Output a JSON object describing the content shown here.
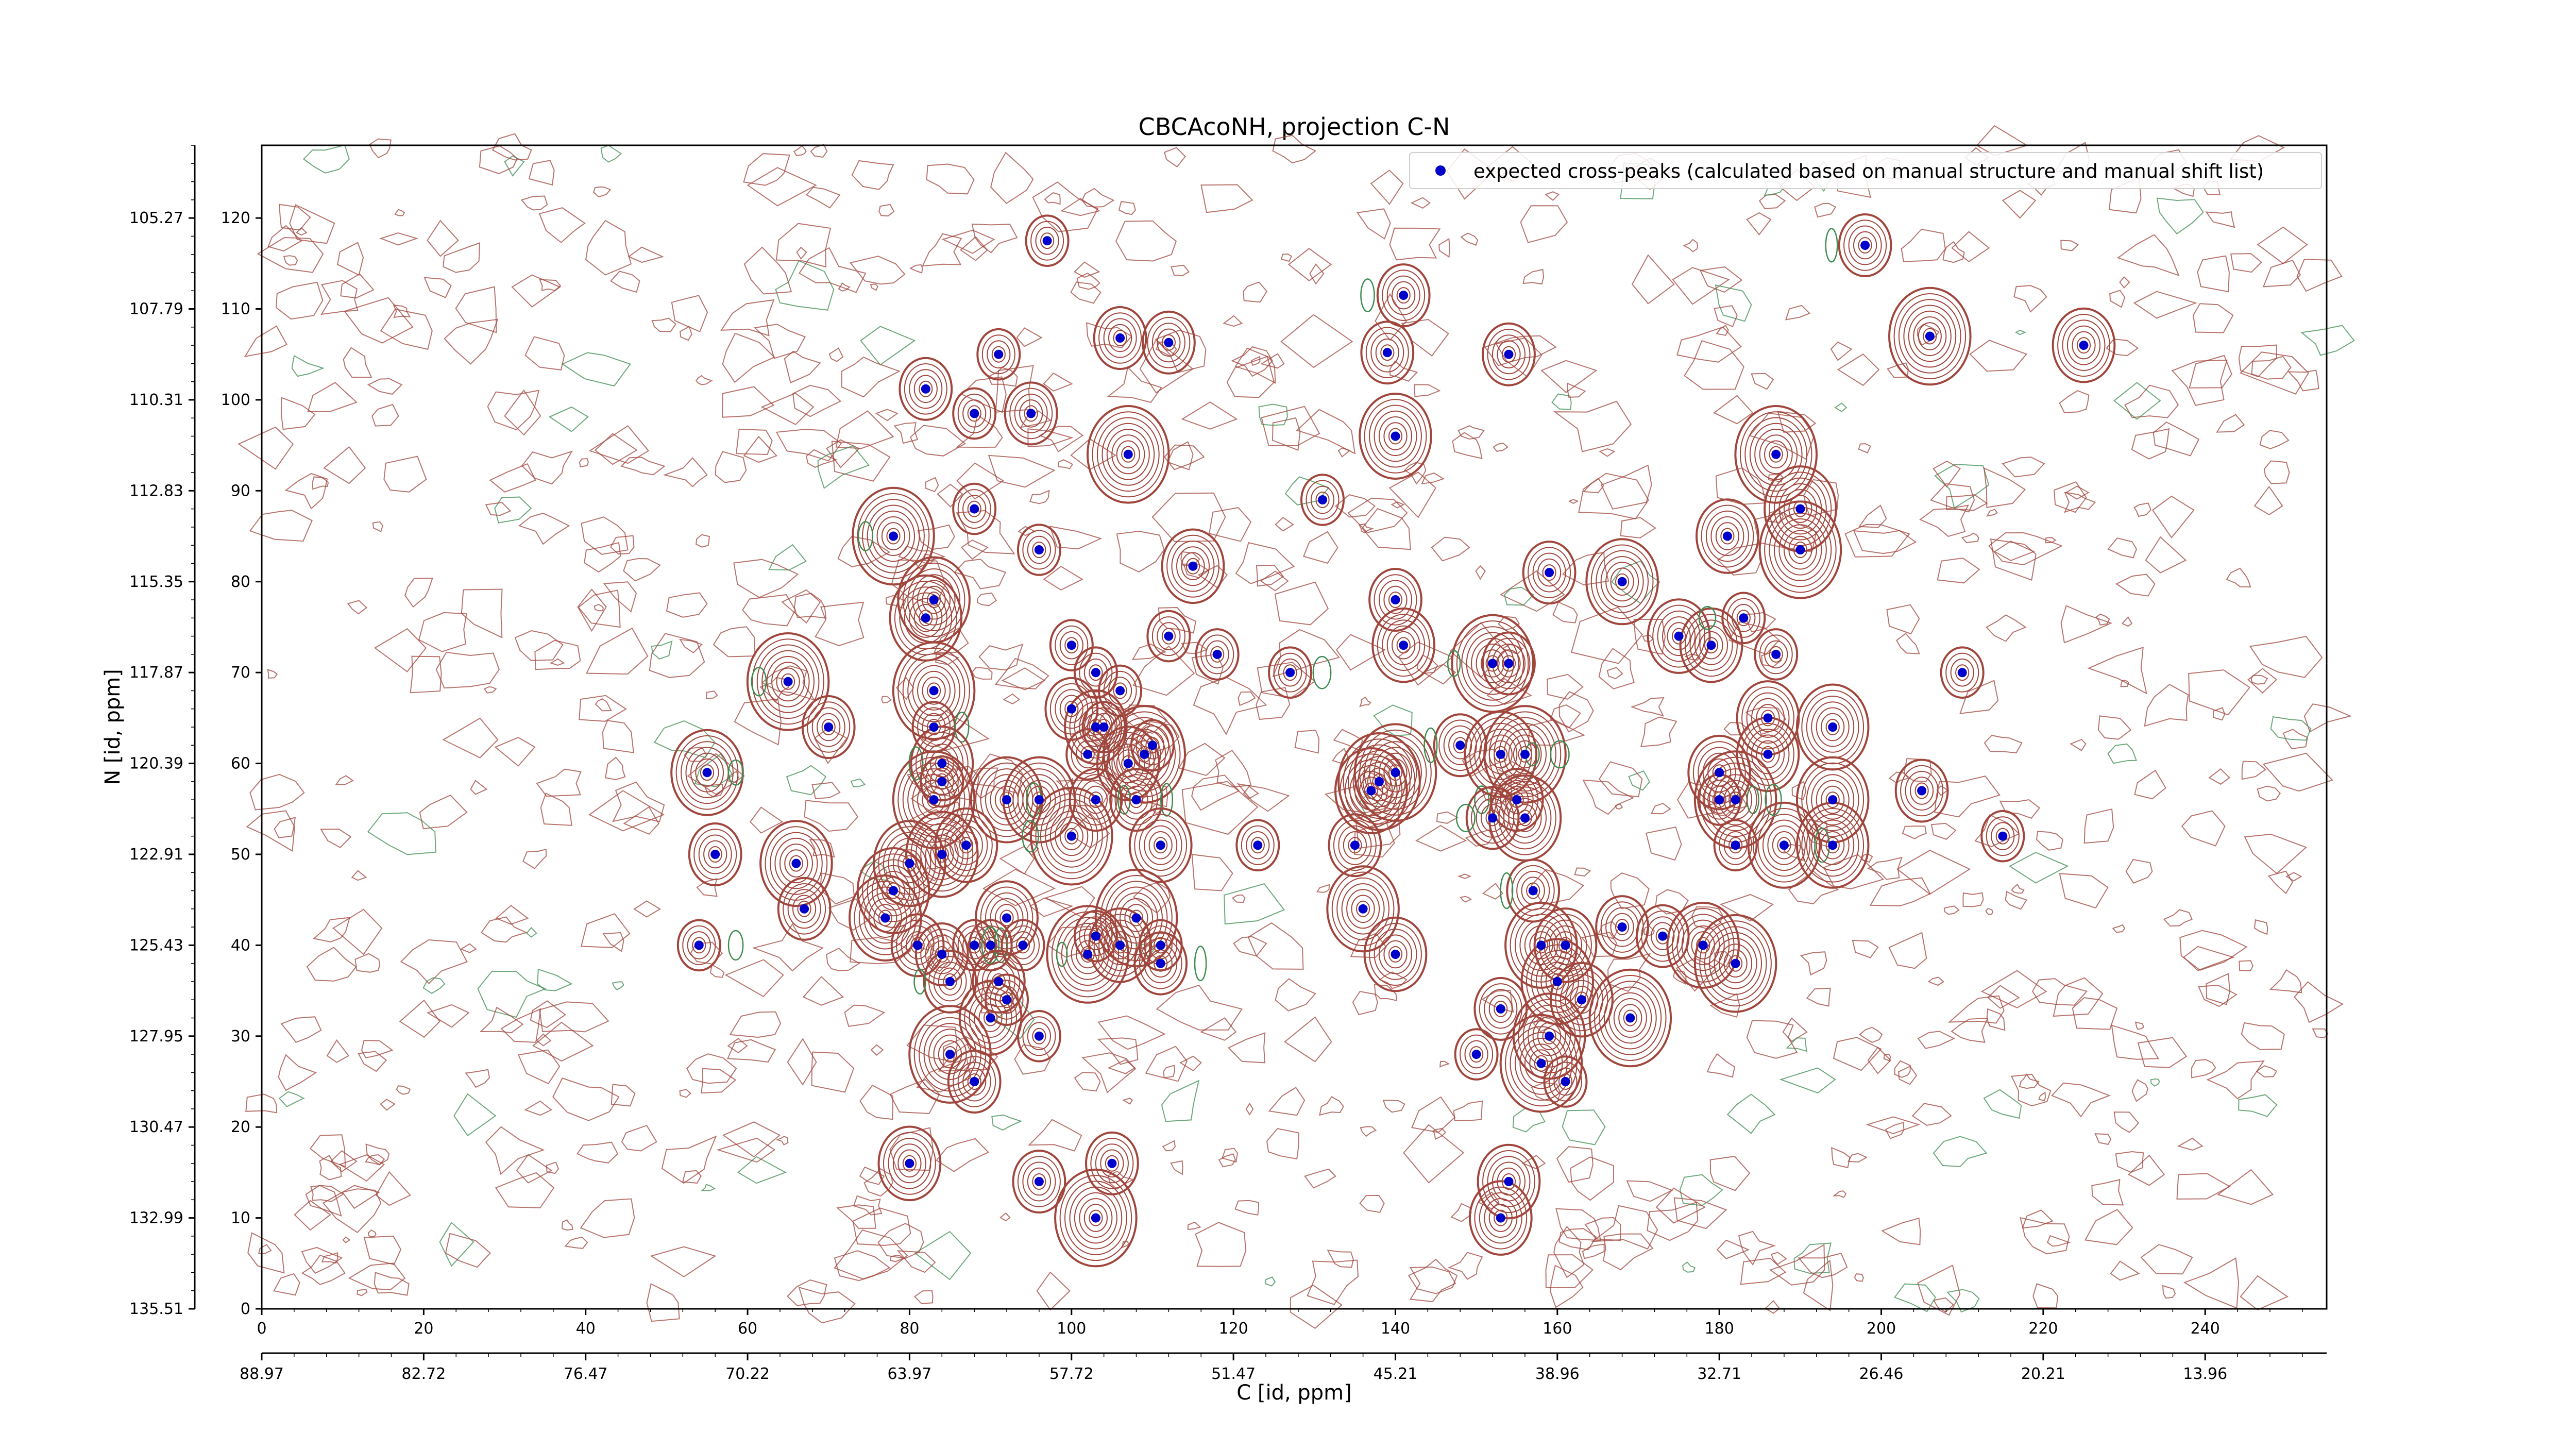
{
  "chart_data": {
    "type": "contour",
    "title": "CBCAcoNH, projection C-N",
    "xlabel": "C [id, ppm]",
    "ylabel": "N [id, ppm]",
    "x_index_range": [
      0,
      255
    ],
    "y_index_range": [
      0,
      128
    ],
    "y_inverted": false,
    "x_index_ticks": [
      "0",
      "20",
      "40",
      "60",
      "80",
      "100",
      "120",
      "140",
      "160",
      "180",
      "200",
      "220",
      "240"
    ],
    "x_ppm_ticks": [
      "88.97",
      "82.72",
      "76.47",
      "70.22",
      "63.97",
      "57.72",
      "51.47",
      "45.21",
      "38.96",
      "32.71",
      "26.46",
      "20.21",
      "13.96"
    ],
    "y_index_ticks": [
      "0",
      "10",
      "20",
      "30",
      "40",
      "50",
      "60",
      "70",
      "80",
      "90",
      "100",
      "110",
      "120"
    ],
    "y_ppm_ticks": [
      "135.51",
      "132.99",
      "130.47",
      "127.95",
      "125.43",
      "122.91",
      "120.39",
      "117.87",
      "115.35",
      "112.83",
      "110.31",
      "107.79",
      "105.27"
    ],
    "legend": {
      "label": "expected cross-peaks (calculated based on manual structure and manual shift list)",
      "position": "top-right",
      "marker_color": "#0000cc"
    },
    "colors": {
      "positive_contour": "#a0463c",
      "negative_contour": "#3c8c50",
      "marker": "#0000cc"
    },
    "peaks": [
      [
        97,
        117.5
      ],
      [
        141,
        111.5
      ],
      [
        198,
        117
      ],
      [
        106,
        106.8
      ],
      [
        112,
        106.3
      ],
      [
        139,
        105.2
      ],
      [
        91,
        105
      ],
      [
        154,
        105
      ],
      [
        206,
        107
      ],
      [
        225,
        106
      ],
      [
        82,
        101.2
      ],
      [
        88,
        98.5
      ],
      [
        95,
        98.5
      ],
      [
        140,
        96
      ],
      [
        107,
        94
      ],
      [
        187,
        94
      ],
      [
        131,
        89
      ],
      [
        88,
        88
      ],
      [
        190,
        88
      ],
      [
        78,
        85
      ],
      [
        96,
        83.5
      ],
      [
        115,
        81.7
      ],
      [
        159,
        81
      ],
      [
        181,
        85
      ],
      [
        190,
        83.5
      ],
      [
        83,
        78
      ],
      [
        82,
        76
      ],
      [
        140,
        78
      ],
      [
        100,
        73
      ],
      [
        103,
        70
      ],
      [
        106,
        68
      ],
      [
        112,
        74
      ],
      [
        118,
        72
      ],
      [
        127,
        70
      ],
      [
        141,
        73
      ],
      [
        152,
        71
      ],
      [
        154,
        71
      ],
      [
        175,
        74
      ],
      [
        179,
        73
      ],
      [
        183,
        76
      ],
      [
        187,
        72
      ],
      [
        65,
        69
      ],
      [
        70,
        64
      ],
      [
        83,
        68
      ],
      [
        83,
        64
      ],
      [
        186,
        65
      ],
      [
        194,
        64
      ],
      [
        210,
        70
      ],
      [
        100,
        66
      ],
      [
        103,
        64
      ],
      [
        104,
        64
      ],
      [
        84,
        60
      ],
      [
        102,
        61
      ],
      [
        107,
        60
      ],
      [
        109,
        61
      ],
      [
        110,
        62
      ],
      [
        140,
        59
      ],
      [
        138,
        58
      ],
      [
        148,
        62
      ],
      [
        153,
        61
      ],
      [
        156,
        61
      ],
      [
        186,
        61
      ],
      [
        180,
        59
      ],
      [
        55,
        59
      ],
      [
        83,
        56
      ],
      [
        92,
        56
      ],
      [
        96,
        56
      ],
      [
        103,
        56
      ],
      [
        108,
        56
      ],
      [
        137,
        57
      ],
      [
        155,
        56
      ],
      [
        180,
        56
      ],
      [
        182,
        56
      ],
      [
        205,
        57
      ],
      [
        194,
        56
      ],
      [
        56,
        50
      ],
      [
        66,
        49
      ],
      [
        80,
        49
      ],
      [
        84,
        50
      ],
      [
        87,
        51
      ],
      [
        100,
        52
      ],
      [
        111,
        51
      ],
      [
        123,
        51
      ],
      [
        135,
        51
      ],
      [
        152,
        54
      ],
      [
        156,
        54
      ],
      [
        182,
        51
      ],
      [
        188,
        51
      ],
      [
        194,
        51
      ],
      [
        215,
        52
      ],
      [
        78,
        46
      ],
      [
        67,
        44
      ],
      [
        77,
        43
      ],
      [
        92,
        43
      ],
      [
        108,
        43
      ],
      [
        136,
        44
      ],
      [
        157,
        46
      ],
      [
        81,
        40
      ],
      [
        84,
        39
      ],
      [
        88,
        40
      ],
      [
        90,
        40
      ],
      [
        94,
        40
      ],
      [
        103,
        41
      ],
      [
        102,
        39
      ],
      [
        106,
        40
      ],
      [
        111,
        40
      ],
      [
        111,
        38
      ],
      [
        140,
        39
      ],
      [
        158,
        40
      ],
      [
        161,
        40
      ],
      [
        168,
        42
      ],
      [
        173,
        41
      ],
      [
        178,
        40
      ],
      [
        182,
        38
      ],
      [
        54,
        40
      ],
      [
        85,
        36
      ],
      [
        91,
        36
      ],
      [
        92,
        34
      ],
      [
        90,
        32
      ],
      [
        160,
        36
      ],
      [
        163,
        34
      ],
      [
        153,
        33
      ],
      [
        169,
        32
      ],
      [
        96,
        30
      ],
      [
        159,
        30
      ],
      [
        85,
        28
      ],
      [
        158,
        27
      ],
      [
        88,
        25
      ],
      [
        161,
        25
      ],
      [
        150,
        28
      ],
      [
        80,
        16
      ],
      [
        96,
        14
      ],
      [
        105,
        16
      ],
      [
        103,
        10
      ],
      [
        154,
        14
      ],
      [
        153,
        10
      ],
      [
        168,
        80
      ],
      [
        84,
        58
      ]
    ]
  }
}
